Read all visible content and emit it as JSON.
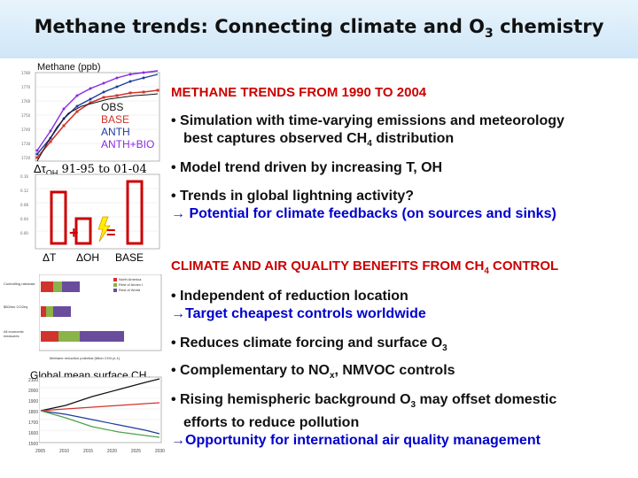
{
  "title": {
    "main": "Methane trends: Connecting climate and O",
    "sub": "3",
    "end": " chemistry"
  },
  "panel1": {
    "ylabel": "Methane (ppb)",
    "legend": [
      "OBS",
      "BASE",
      "ANTH",
      "ANTH+BIO"
    ],
    "colors": {
      "obs": "#111111",
      "base": "#d0342c",
      "anth": "#1c3c9c",
      "anthbio": "#8a2be2"
    }
  },
  "panel2": {
    "label_pre": "Δτ",
    "label_sub": "OH",
    "label_post": " 91-95 to 01-04",
    "plus": "+",
    "equals": "=",
    "bars": [
      "ΔT",
      "ΔOH",
      "BASE"
    ]
  },
  "panel3": {
    "rows": [
      "Controlling rationale",
      "$50/ton CO2eq",
      "All economic measures"
    ],
    "legend": [
      "North America",
      "Rest of Annex I",
      "Rest of World"
    ],
    "xlabel": "Methane reduction potential (Mton CH4 yr-1)"
  },
  "panel4": {
    "title_pre": "Global mean surface CH",
    "title_sub": "4",
    "yticks": [
      "2100",
      "2000",
      "1900",
      "1800",
      "1700",
      "1600",
      "1500"
    ],
    "xticks": [
      "2005",
      "2010",
      "2015",
      "2020",
      "2025",
      "2030"
    ]
  },
  "section1": {
    "heading": "METHANE TRENDS FROM 1990 TO 2004",
    "b1_l1": "• Simulation with time-varying emissions and meteorology",
    "b1_l2_pre": "best captures observed CH",
    "b1_l2_sub": "4",
    "b1_l2_post": " distribution",
    "b2": "• Model trend driven by increasing T, OH",
    "b3": "• Trends in global lightning activity?",
    "b3_arrow": "→",
    "b3_l2": " Potential for climate feedbacks (on sources and sinks)"
  },
  "section2": {
    "heading_pre": "CLIMATE AND AIR QUALITY BENEFITS FROM CH",
    "heading_sub": "4",
    "heading_post": " CONTROL",
    "b1": "• Independent of reduction location",
    "b1_arrow": "→",
    "b1_l2": "Target cheapest controls worldwide",
    "b2_pre": "• Reduces climate forcing and surface O",
    "b2_sub": "3",
    "b3_pre": "• Complementary to NO",
    "b3_sub": "x",
    "b3_post": ", NMVOC controls",
    "b4_l1_pre": "• Rising hemispheric background O",
    "b4_l1_sub": "3",
    "b4_l1_post": " may offset domestic",
    "b4_l2": "efforts to reduce pollution",
    "b4_arrow": "→",
    "b4_l3": "Opportunity for international air quality management"
  }
}
